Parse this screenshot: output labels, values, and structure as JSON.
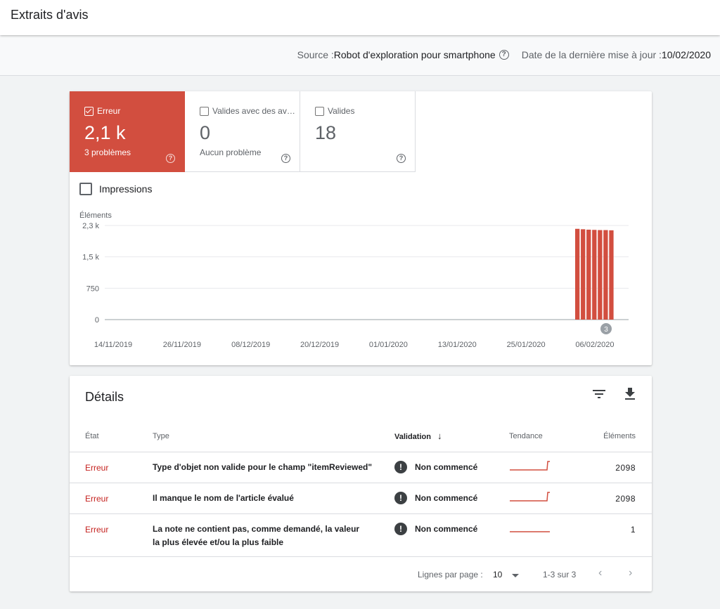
{
  "header": {
    "title": "Extraits d'avis"
  },
  "info": {
    "source_label": "Source : ",
    "source_value": "Robot d'exploration pour smartphone",
    "date_label": "Date de la dernière mise à jour : ",
    "date_value": "10/02/2020"
  },
  "tiles": [
    {
      "label": "Erreur",
      "value": "2,1 k",
      "sub": "3 problèmes",
      "active": true,
      "color": "#d24e3f"
    },
    {
      "label": "Valides avec des avertissements",
      "value": "0",
      "sub": "Aucun problème",
      "active": false
    },
    {
      "label": "Valides",
      "value": "18",
      "sub": "",
      "active": false
    }
  ],
  "impressions_label": "Impressions",
  "chart_data": {
    "type": "bar",
    "ylabel": "Éléments",
    "yticks": [
      "2,3 k",
      "1,5 k",
      "750",
      "0"
    ],
    "ytick_values": [
      2250,
      1500,
      750,
      0
    ],
    "ylim": [
      0,
      2250
    ],
    "xticks": [
      "14/11/2019",
      "26/11/2019",
      "08/12/2019",
      "20/12/2019",
      "01/01/2020",
      "13/01/2020",
      "25/01/2020",
      "06/02/2020"
    ],
    "bar_color": "#d24e3f",
    "annotation": "3",
    "series": [
      {
        "dates": [
          "04/02/2020",
          "05/02/2020",
          "06/02/2020",
          "07/02/2020",
          "08/02/2020",
          "09/02/2020",
          "10/02/2020"
        ],
        "values": [
          2170,
          2160,
          2150,
          2145,
          2140,
          2140,
          2135
        ]
      }
    ]
  },
  "details": {
    "title": "Détails",
    "columns": {
      "state": "État",
      "type": "Type",
      "validation": "Validation",
      "trend": "Tendance",
      "items": "Éléments"
    },
    "rows": [
      {
        "state": "Erreur",
        "type": "Type d'objet non valide pour le champ \"itemReviewed\"",
        "validation": "Non commencé",
        "trend": "step",
        "items": "2098"
      },
      {
        "state": "Erreur",
        "type": "Il manque le nom de l'article évalué",
        "validation": "Non commencé",
        "trend": "step",
        "items": "2098"
      },
      {
        "state": "Erreur",
        "type": "La note ne contient pas, comme demandé, la valeur la plus élevée et/ou la plus faible",
        "validation": "Non commencé",
        "trend": "flat",
        "items": "1"
      }
    ],
    "footer": {
      "rows_per_page_label": "Lignes par page :",
      "rows_per_page_value": "10",
      "range": "1-3 sur 3"
    }
  },
  "icons": {
    "filter": "filter-icon",
    "download": "download-icon",
    "help": "help-icon",
    "prev": "chevron-left-icon",
    "next": "chevron-right-icon"
  }
}
